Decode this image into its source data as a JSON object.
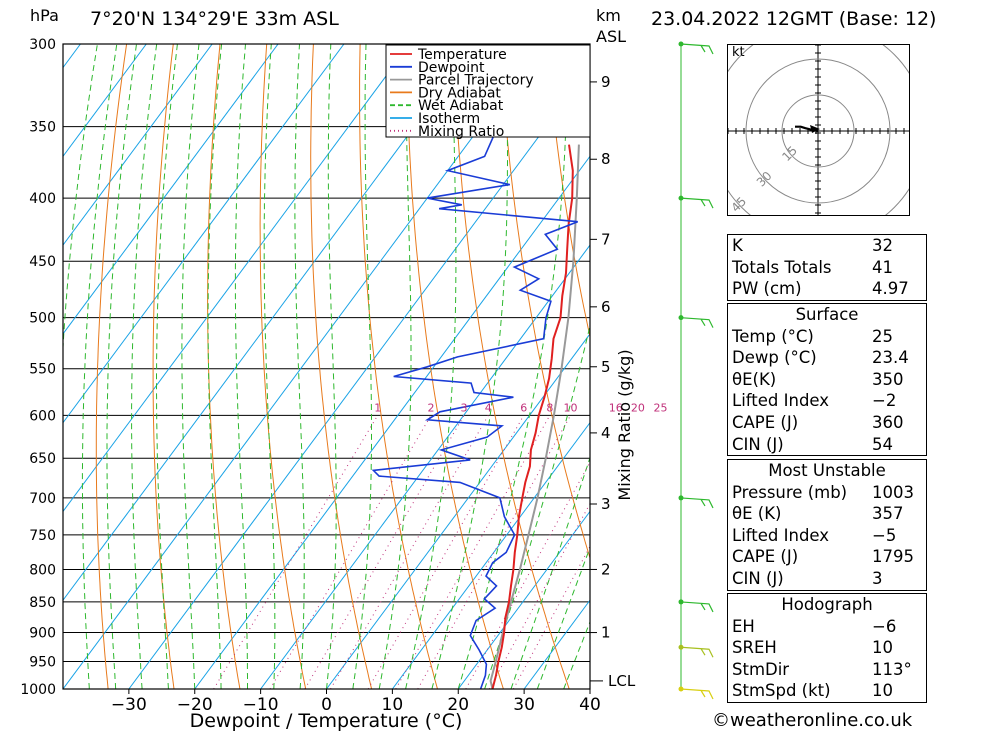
{
  "header": {
    "hpa_label": "hPa",
    "location": "7°20'N  134°29'E  33m  ASL",
    "km_label": "km",
    "asl_label": "ASL",
    "datetime": "23.04.2022  12GMT  (Base: 12)"
  },
  "chart_data": {
    "type": "line",
    "subtype": "skew-T log-p",
    "xlabel": "Dewpoint / Temperature (°C)",
    "ylabel": "hPa",
    "right_axis_label": "Mixing Ratio (g/kg)",
    "xlim": [
      -40,
      40
    ],
    "ylim": [
      1000,
      300
    ],
    "y_log_scale": true,
    "x_ticks": [
      -30,
      -20,
      -10,
      0,
      10,
      20,
      30,
      40
    ],
    "pressure_ticks": [
      300,
      350,
      400,
      450,
      500,
      550,
      600,
      650,
      700,
      750,
      800,
      850,
      900,
      950,
      1000
    ],
    "km_ticks": [
      {
        "km": 1,
        "p": 900
      },
      {
        "km": 2,
        "p": 800
      },
      {
        "km": 3,
        "p": 708
      },
      {
        "km": 4,
        "p": 620
      },
      {
        "km": 5,
        "p": 548
      },
      {
        "km": 6,
        "p": 490
      },
      {
        "km": 7,
        "p": 432
      },
      {
        "km": 8,
        "p": 372
      },
      {
        "km": 9,
        "p": 322
      }
    ],
    "lcl": {
      "label": "LCL",
      "p": 985
    },
    "mixing_ratio_labels": [
      {
        "label": "1",
        "w": 1
      },
      {
        "label": "2",
        "w": 2
      },
      {
        "label": "3",
        "w": 3
      },
      {
        "label": "4",
        "w": 4
      },
      {
        "label": "6",
        "w": 6
      },
      {
        "label": "8",
        "w": 8
      },
      {
        "label": "10",
        "w": 10
      },
      {
        "label": "16",
        "w": 16
      },
      {
        "label": "20",
        "w": 20
      },
      {
        "label": "25",
        "w": 25
      }
    ],
    "legend": [
      {
        "name": "Temperature",
        "color": "#e02020",
        "style": "solid"
      },
      {
        "name": "Dewpoint",
        "color": "#1a3cd6",
        "style": "solid"
      },
      {
        "name": "Parcel Trajectory",
        "color": "#999999",
        "style": "solid"
      },
      {
        "name": "Dry Adiabat",
        "color": "#e87a1c",
        "style": "solid"
      },
      {
        "name": "Wet Adiabat",
        "color": "#2eb82e",
        "style": "dashed"
      },
      {
        "name": "Isotherm",
        "color": "#1aa3e6",
        "style": "solid"
      },
      {
        "name": "Mixing Ratio",
        "color": "#c0307a",
        "style": "dotted"
      }
    ],
    "series": [
      {
        "name": "Temperature",
        "color": "#e02020",
        "points": [
          [
            1000,
            25.2
          ],
          [
            975,
            24.2
          ],
          [
            950,
            23.0
          ],
          [
            925,
            21.9
          ],
          [
            900,
            20.6
          ],
          [
            875,
            19.1
          ],
          [
            850,
            17.9
          ],
          [
            825,
            16.4
          ],
          [
            800,
            14.9
          ],
          [
            775,
            13.2
          ],
          [
            750,
            11.6
          ],
          [
            725,
            9.8
          ],
          [
            700,
            8.2
          ],
          [
            680,
            6.9
          ],
          [
            660,
            5.8
          ],
          [
            640,
            4.1
          ],
          [
            620,
            2.9
          ],
          [
            600,
            1.4
          ],
          [
            580,
            0.2
          ],
          [
            560,
            -1.2
          ],
          [
            540,
            -3.0
          ],
          [
            520,
            -5.0
          ],
          [
            500,
            -6.3
          ],
          [
            480,
            -8.5
          ],
          [
            460,
            -10.5
          ],
          [
            440,
            -13.0
          ],
          [
            420,
            -15.6
          ],
          [
            400,
            -18.0
          ],
          [
            380,
            -21.0
          ],
          [
            362,
            -24.5
          ]
        ]
      },
      {
        "name": "Dewpoint",
        "color": "#1a3cd6",
        "points": [
          [
            1000,
            23.4
          ],
          [
            975,
            22.6
          ],
          [
            955,
            21.5
          ],
          [
            930,
            18.8
          ],
          [
            905,
            15.8
          ],
          [
            880,
            15.0
          ],
          [
            860,
            16.5
          ],
          [
            845,
            13.8
          ],
          [
            825,
            14.2
          ],
          [
            810,
            11.5
          ],
          [
            790,
            11.0
          ],
          [
            775,
            11.9
          ],
          [
            750,
            11.2
          ],
          [
            725,
            7.6
          ],
          [
            700,
            4.8
          ],
          [
            680,
            -3.0
          ],
          [
            672,
            -16.0
          ],
          [
            665,
            -17.5
          ],
          [
            652,
            -4.0
          ],
          [
            640,
            -9.5
          ],
          [
            625,
            -4.0
          ],
          [
            612,
            -3.0
          ],
          [
            605,
            -15.0
          ],
          [
            596,
            -14.0
          ],
          [
            580,
            -4.5
          ],
          [
            575,
            -11.0
          ],
          [
            565,
            -12.5
          ],
          [
            558,
            -25.0
          ],
          [
            548,
            -21.0
          ],
          [
            538,
            -17.5
          ],
          [
            520,
            -6.5
          ],
          [
            500,
            -8.5
          ],
          [
            485,
            -9.6
          ],
          [
            475,
            -15.5
          ],
          [
            465,
            -14.0
          ],
          [
            455,
            -19.0
          ],
          [
            440,
            -14.5
          ],
          [
            428,
            -18.0
          ],
          [
            418,
            -14.5
          ],
          [
            408,
            -37.0
          ],
          [
            405,
            -34.0
          ],
          [
            400,
            -40.0
          ],
          [
            390,
            -29.0
          ],
          [
            380,
            -40.0
          ],
          [
            370,
            -36.0
          ],
          [
            355,
            -37.0
          ],
          [
            340,
            -40.0
          ],
          [
            325,
            -38.0
          ],
          [
            300,
            -50.0
          ]
        ]
      },
      {
        "name": "Parcel Trajectory",
        "color": "#999999",
        "points": [
          [
            1000,
            25.2
          ],
          [
            985,
            24.0
          ],
          [
            950,
            22.6
          ],
          [
            900,
            20.4
          ],
          [
            850,
            18.2
          ],
          [
            800,
            15.9
          ],
          [
            750,
            13.3
          ],
          [
            700,
            10.5
          ],
          [
            650,
            7.3
          ],
          [
            600,
            3.7
          ],
          [
            550,
            -0.4
          ],
          [
            500,
            -5.1
          ],
          [
            450,
            -10.7
          ],
          [
            400,
            -17.3
          ],
          [
            362,
            -23.0
          ]
        ]
      }
    ]
  },
  "hodograph": {
    "unit_label": "kt",
    "ring_labels": [
      "15",
      "30",
      "45"
    ],
    "points_kt": [
      [
        0,
        0
      ],
      [
        -5,
        1
      ],
      [
        -9,
        2
      ],
      [
        -12,
        3
      ],
      [
        -16,
        3
      ]
    ]
  },
  "wind_barbs": {
    "color_top": "#2eb82e",
    "color_bottom": "#d8cf10",
    "levels": [
      300,
      400,
      500,
      700,
      850,
      925,
      1000
    ]
  },
  "indices_top": [
    {
      "label": "K",
      "value": "32"
    },
    {
      "label": "Totals Totals",
      "value": "41"
    },
    {
      "label": "PW (cm)",
      "value": "4.97"
    }
  ],
  "surface": {
    "title": "Surface",
    "rows": [
      {
        "label": "Temp (°C)",
        "value": "25"
      },
      {
        "label": "Dewp (°C)",
        "value": "23.4"
      },
      {
        "label": "θE(K)",
        "value": "350"
      },
      {
        "label": "Lifted Index",
        "value": "−2"
      },
      {
        "label": "CAPE (J)",
        "value": "360"
      },
      {
        "label": "CIN (J)",
        "value": "54"
      }
    ]
  },
  "most_unstable": {
    "title": "Most Unstable",
    "rows": [
      {
        "label": "Pressure (mb)",
        "value": "1003"
      },
      {
        "label": "θE (K)",
        "value": "357"
      },
      {
        "label": "Lifted Index",
        "value": "−5"
      },
      {
        "label": "CAPE (J)",
        "value": "1795"
      },
      {
        "label": "CIN (J)",
        "value": "3"
      }
    ]
  },
  "hodograph_table": {
    "title": "Hodograph",
    "rows": [
      {
        "label": "EH",
        "value": "−6"
      },
      {
        "label": "SREH",
        "value": "10"
      },
      {
        "label": "StmDir",
        "value": "113°"
      },
      {
        "label": "StmSpd (kt)",
        "value": "10"
      }
    ]
  },
  "footer": "©weatheronline.co.uk"
}
